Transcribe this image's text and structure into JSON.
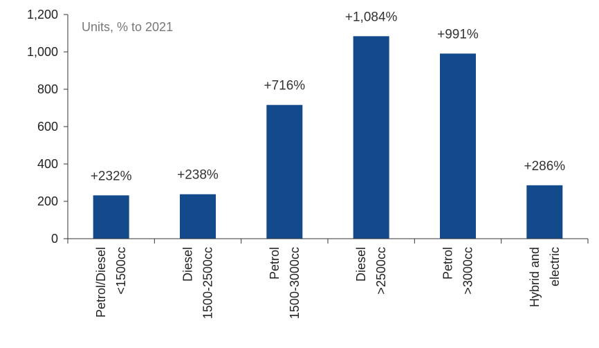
{
  "chart_data": {
    "type": "bar",
    "annotation": "Units, % to 2021",
    "categories": [
      [
        "Petrol/Diesel",
        "<1500cc"
      ],
      [
        "Diesel",
        "1500-2500cc"
      ],
      [
        "Petrol",
        "1500-3000cc"
      ],
      [
        "Diesel",
        ">2500cc"
      ],
      [
        "Petrol",
        ">3000cc"
      ],
      [
        "Hybrid and",
        "electric"
      ]
    ],
    "values": [
      232,
      238,
      716,
      1084,
      991,
      286
    ],
    "data_labels": [
      "+232%",
      "+238%",
      "+716%",
      "+1,084%",
      "+991%",
      "+286%"
    ],
    "ylim": [
      0,
      1200
    ],
    "yticks": [
      0,
      200,
      400,
      600,
      800,
      1000,
      1200
    ],
    "ytick_labels": [
      "0",
      "200",
      "400",
      "600",
      "800",
      "1,000",
      "1,200"
    ],
    "grid": false,
    "bar_color": "#124a8c",
    "axis_color": "#333333"
  }
}
